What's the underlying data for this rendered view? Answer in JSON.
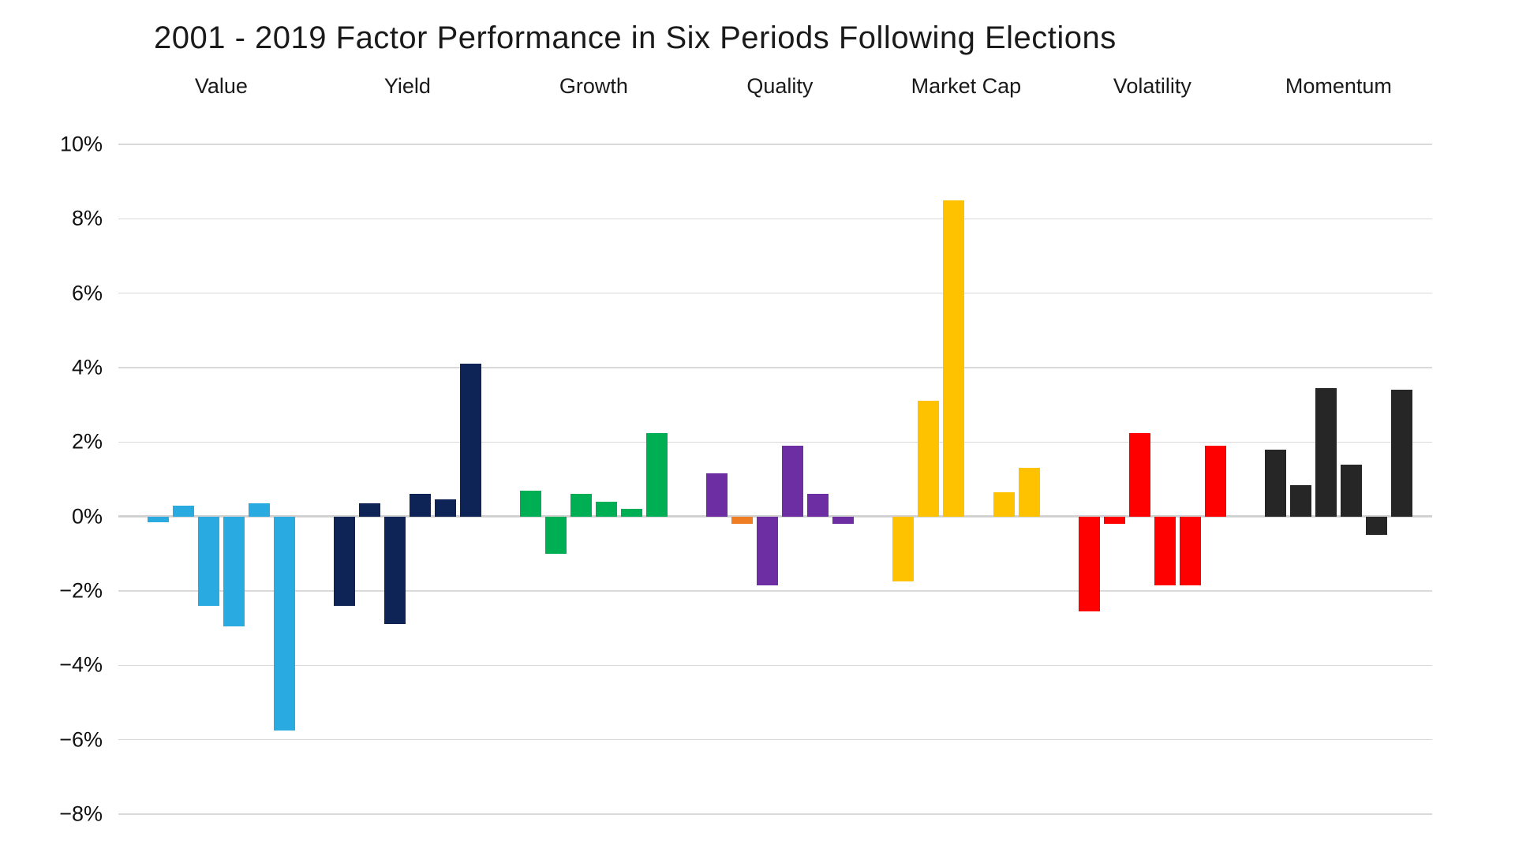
{
  "title": "2001 - 2019 Factor Performance in Six Periods Following Elections",
  "chart_data": {
    "type": "bar",
    "title": "2001 - 2019 Factor Performance in Six Periods Following Elections",
    "xlabel": "",
    "ylabel": "",
    "unit": "%",
    "ylim": [
      -8,
      10
    ],
    "y_tick_step": 2,
    "grid": "horizontal",
    "legend_position": "group-labels-above-plot",
    "y_ticks": [
      "10%",
      "8%",
      "6%",
      "4%",
      "2%",
      "0%",
      "−2%",
      "−4%",
      "−6%",
      "−8%"
    ],
    "y_tick_values": [
      10,
      8,
      6,
      4,
      2,
      0,
      -2,
      -4,
      -6,
      -8
    ],
    "series_note": "six bars per factor group = six post-election periods",
    "groups": [
      {
        "label": "Value",
        "color": "#29ABE2",
        "values": [
          -0.15,
          0.3,
          -2.4,
          -2.95,
          0.35,
          -5.75
        ]
      },
      {
        "label": "Yield",
        "color": "#0F2456",
        "values": [
          -2.4,
          0.35,
          -2.9,
          0.6,
          0.45,
          4.1
        ]
      },
      {
        "label": "Growth",
        "color": "#00AF54",
        "values": [
          0.7,
          -1.0,
          0.6,
          0.4,
          0.2,
          2.25
        ]
      },
      {
        "label": "Quality",
        "color": "#6C2EA2",
        "values": [
          1.15,
          -0.2,
          -1.85,
          1.9,
          0.6,
          -0.2
        ],
        "bar_color_overrides": {
          "1": "#EE7D23"
        }
      },
      {
        "label": "Market Cap",
        "color": "#FFC200",
        "values": [
          -1.75,
          3.1,
          8.5,
          0,
          0.65,
          1.3
        ]
      },
      {
        "label": "Volatility",
        "color": "#FF0000",
        "values": [
          -2.55,
          -0.2,
          2.25,
          -1.85,
          -1.85,
          1.9
        ]
      },
      {
        "label": "Momentum",
        "color": "#262626",
        "values": [
          1.8,
          0.85,
          3.45,
          1.4,
          -0.5,
          3.4
        ]
      }
    ]
  }
}
